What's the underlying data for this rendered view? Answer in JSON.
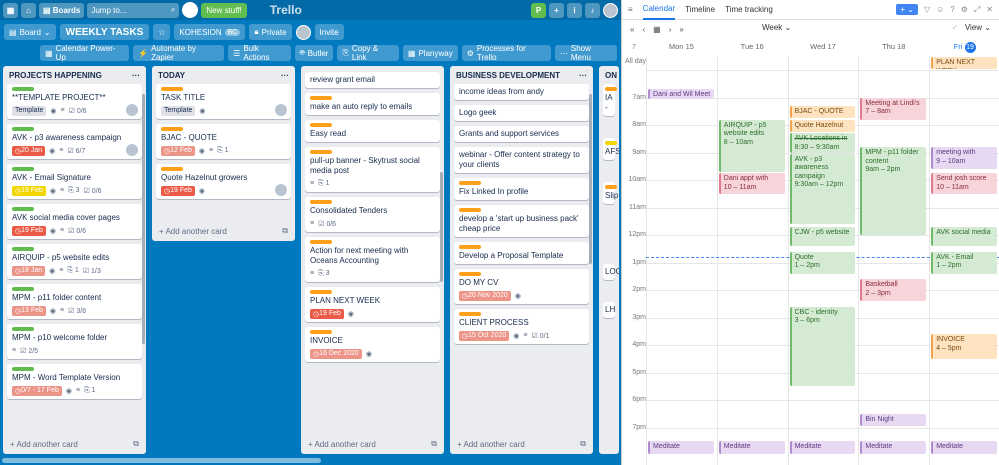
{
  "topbar": {
    "boards_label": "Boards",
    "search_placeholder": "Jump to...",
    "new_stuff": "New stuff!",
    "logo": "Trello"
  },
  "boardbar": {
    "board_menu": "Board",
    "title": "WEEKLY TASKS",
    "team": "KOHESION",
    "team_badge": "BC",
    "visibility": "Private",
    "invite": "Invite"
  },
  "menubar": {
    "items": [
      "Calendar Power-Up",
      "Automate by Zapier",
      "Bulk Actions",
      "Butler",
      "Copy & Link",
      "Planyway",
      "Processes for Trello",
      "Show Menu"
    ]
  },
  "add_card": "+ Add another card",
  "lists": [
    {
      "title": "PROJECTS HAPPENING",
      "cards": [
        {
          "label": "#61bd4f",
          "title": "**TEMPLATE PROJECT**",
          "template": "Template",
          "check": "0/6"
        },
        {
          "label": "#61bd4f",
          "title": "AVK - p3 awareness campaign",
          "due": "20 Jan",
          "due_color": "#eb5a46",
          "check": "6/7"
        },
        {
          "label": "#61bd4f",
          "title": "AVK - Email Signature",
          "due": "19 Feb",
          "due_color": "#f2d600",
          "attach": "3",
          "check": "0/6"
        },
        {
          "label": "#61bd4f",
          "title": "AVK social media cover pages",
          "due": "19 Feb",
          "due_color": "#eb5a46",
          "check": "0/6"
        },
        {
          "label": "#61bd4f",
          "title": "AIRQUIP - p5 website edits",
          "due": "18 Jan",
          "due_color": "#ec9488",
          "attach": "1",
          "check": "1/3"
        },
        {
          "label": "#61bd4f",
          "title": "MPM - p11 folder content",
          "due": "13 Feb",
          "due_color": "#ec9488",
          "check": "3/8"
        },
        {
          "label": "#61bd4f",
          "title": "MPM - p10 welcome folder",
          "check": "2/5"
        },
        {
          "label": "#61bd4f",
          "title": "MPM - Word Template Version",
          "attach": "1",
          "due": "0/7 - 17 Feb",
          "due_color": "#ec9488"
        }
      ]
    },
    {
      "title": "TODAY",
      "cards": [
        {
          "label": "#ff9f1a",
          "title": "TASK TITLE",
          "template": "Template"
        },
        {
          "label": "#ff9f1a",
          "title": "BJAC - QUOTE",
          "due": "12 Feb",
          "due_color": "#ec9488",
          "attach": "1"
        },
        {
          "label": "#ff9f1a",
          "title": "Quote Hazelnut growers",
          "due": "19 Feb",
          "due_color": "#eb5a46"
        }
      ]
    },
    {
      "title": "TASKS",
      "cards": [
        {
          "label": "",
          "title": "review grant email"
        },
        {
          "label": "#ff9f1a",
          "title": "make an auto reply to emails"
        },
        {
          "label": "#ff9f1a",
          "title": "Easy read"
        },
        {
          "label": "#ff9f1a",
          "title": "pull-up banner - Skytrust social media post",
          "attach": "1"
        },
        {
          "label": "#ff9f1a",
          "title": "Consolidated Tenders",
          "check": "0/6"
        },
        {
          "label": "#ff9f1a",
          "title": "Action for next meeting with Oceans Accounting",
          "attach": "3"
        },
        {
          "label": "#ff9f1a",
          "title": "PLAN NEXT WEEK",
          "due": "19 Feb",
          "due_color": "#eb5a46"
        },
        {
          "label": "#ff9f1a",
          "title": "INVOICE",
          "due": "16 Dec 2020",
          "due_color": "#ec9488"
        }
      ]
    },
    {
      "title": "BUSINESS DEVELOPMENT",
      "cards": [
        {
          "label": "",
          "title": "income ideas from andy"
        },
        {
          "label": "",
          "title": "Logo geek"
        },
        {
          "label": "",
          "title": "Grants and support services"
        },
        {
          "label": "",
          "title": "webinar - Offer content strategy to your clients"
        },
        {
          "label": "#ff9f1a",
          "title": "Fix Linked In profile"
        },
        {
          "label": "#ff9f1a",
          "title": "develop a 'start up business pack' cheap price"
        },
        {
          "label": "#ff9f1a",
          "title": "Develop a Proposal Template"
        },
        {
          "label": "#ff9f1a",
          "title": "DO MY CV",
          "due": "20 Nov 2020",
          "due_color": "#ec9488"
        },
        {
          "label": "#ff9f1a",
          "title": "CLIENT PROCESS",
          "due": "15 Oct 2020",
          "due_color": "#ec9488",
          "check": "0/1"
        }
      ]
    },
    {
      "title": "ON",
      "cards": [
        {
          "label": "#ff9f1a",
          "title": "IA -"
        },
        {
          "label": "#f2d600",
          "title": "AFS"
        },
        {
          "label": "#ff9f1a",
          "title": "Slip"
        },
        {
          "label": "",
          "title": "LOO"
        },
        {
          "label": "",
          "title": "LH"
        }
      ]
    }
  ],
  "calendar": {
    "tabs": [
      "Calendar",
      "Timeline",
      "Time tracking"
    ],
    "week_label": "Week",
    "view_label": "View",
    "week_number": "7",
    "allday_label": "All day",
    "days": [
      {
        "name": "Mon",
        "num": "15"
      },
      {
        "name": "Tue",
        "num": "16"
      },
      {
        "name": "Wed",
        "num": "17"
      },
      {
        "name": "Thu",
        "num": "18"
      },
      {
        "name": "Fri",
        "num": "19"
      }
    ],
    "hours": [
      "7am",
      "8am",
      "9am",
      "10am",
      "11am",
      "12pm",
      "1pm",
      "2pm",
      "3pm",
      "4pm",
      "5pm",
      "6pm",
      "7pm"
    ],
    "events": [
      {
        "day": 4,
        "allday": true,
        "title": "PLAN NEXT WEEK",
        "time": "",
        "color": "orange"
      },
      {
        "day": 0,
        "start": 6.7,
        "end": 6.95,
        "title": "Dani and Wil Meet",
        "time": "",
        "color": "purple"
      },
      {
        "day": 3,
        "start": 7,
        "end": 7.8,
        "title": "Meeting at Lindi's",
        "time": "7 – 8am",
        "color": "pink"
      },
      {
        "day": 2,
        "start": 7.3,
        "end": 7.75,
        "title": "BJAC - QUOTE",
        "time": "",
        "color": "orange"
      },
      {
        "day": 2,
        "start": 7.8,
        "end": 8.25,
        "title": "Quote Hazelnut",
        "time": "",
        "color": "orange"
      },
      {
        "day": 1,
        "start": 7.8,
        "end": 9.7,
        "title": "AIRQUIP - p5 website edits",
        "time": "8 – 10am",
        "color": "green"
      },
      {
        "day": 2,
        "start": 8.3,
        "end": 9,
        "title": "AVK Locations in",
        "time": "8:30 – 9:30am",
        "color": "green",
        "strike": true
      },
      {
        "day": 3,
        "start": 8.8,
        "end": 12,
        "title": "MPM - p11 folder content",
        "time": "9am – 2pm",
        "color": "green"
      },
      {
        "day": 4,
        "start": 8.8,
        "end": 9.6,
        "title": "meeting with",
        "time": "9 – 10am",
        "color": "purple"
      },
      {
        "day": 2,
        "start": 9.05,
        "end": 11.6,
        "title": "AVK - p3 awareness campaign",
        "time": "9:30am – 12pm",
        "color": "green"
      },
      {
        "day": 1,
        "start": 9.75,
        "end": 10.5,
        "title": "Dani appt with",
        "time": "10 – 11am",
        "color": "pink"
      },
      {
        "day": 4,
        "start": 9.75,
        "end": 10.5,
        "title": "Send josh score",
        "time": "10 – 11am",
        "color": "pink"
      },
      {
        "day": 2,
        "start": 11.7,
        "end": 12.4,
        "title": "CJW - p5 website",
        "time": "",
        "color": "green"
      },
      {
        "day": 4,
        "start": 11.7,
        "end": 12.4,
        "title": "AVK social media",
        "time": "",
        "color": "green"
      },
      {
        "day": 2,
        "start": 12.6,
        "end": 13.4,
        "title": "Quote",
        "time": "1 – 2pm",
        "color": "green"
      },
      {
        "day": 4,
        "start": 12.6,
        "end": 13.4,
        "title": "AVK - Email",
        "time": "1 – 2pm",
        "color": "green"
      },
      {
        "day": 3,
        "start": 13.6,
        "end": 14.4,
        "title": "Basketball",
        "time": "2 – 3pm",
        "color": "pink"
      },
      {
        "day": 2,
        "start": 14.6,
        "end": 17.5,
        "title": "CBC - identity",
        "time": "3 – 6pm",
        "color": "green"
      },
      {
        "day": 4,
        "start": 15.6,
        "end": 16.5,
        "title": "INVOICE",
        "time": "4 – 5pm",
        "color": "orange"
      },
      {
        "day": 3,
        "start": 18.5,
        "end": 18.95,
        "title": "Bin Night",
        "time": "",
        "color": "purple"
      },
      {
        "day": 0,
        "start": 19.5,
        "end": 19.95,
        "title": "Meditate",
        "time": "",
        "color": "purple"
      },
      {
        "day": 1,
        "start": 19.5,
        "end": 19.95,
        "title": "Meditate",
        "time": "",
        "color": "purple"
      },
      {
        "day": 2,
        "start": 19.5,
        "end": 19.95,
        "title": "Meditate",
        "time": "",
        "color": "purple"
      },
      {
        "day": 3,
        "start": 19.5,
        "end": 19.95,
        "title": "Meditate",
        "time": "",
        "color": "purple"
      },
      {
        "day": 4,
        "start": 19.5,
        "end": 19.95,
        "title": "Meditate",
        "time": "",
        "color": "purple"
      }
    ]
  }
}
